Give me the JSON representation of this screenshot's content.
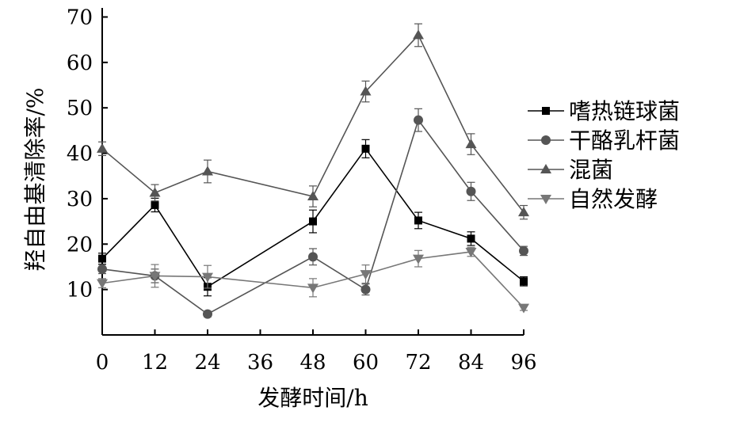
{
  "chart_data": {
    "type": "line",
    "xlabel": "发酵时间/h",
    "ylabel": "羟自由基清除率/%",
    "x": [
      0,
      12,
      24,
      48,
      60,
      72,
      84,
      96
    ],
    "xticks": [
      "0",
      "12",
      "24",
      "36",
      "48",
      "60",
      "72",
      "84",
      "96"
    ],
    "xlim": [
      0,
      96
    ],
    "yticks": [
      "10",
      "20",
      "30",
      "40",
      "50",
      "60",
      "70"
    ],
    "ylim": [
      0,
      72
    ],
    "grid": false,
    "legend_position": "right",
    "series": [
      {
        "name": "嗜热链球菌",
        "marker": "square",
        "color": "#000000",
        "values": [
          16.8,
          28.6,
          10.6,
          25.0,
          41.0,
          25.2,
          21.2,
          11.8
        ],
        "errors": [
          1.2,
          1.5,
          2.0,
          2.5,
          2.0,
          1.8,
          1.5,
          1.0
        ]
      },
      {
        "name": "干酪乳杆菌",
        "marker": "circle",
        "color": "#555555",
        "values": [
          14.5,
          13.0,
          4.6,
          17.2,
          10.0,
          47.3,
          31.6,
          18.5
        ],
        "errors": [
          1.0,
          1.5,
          0.6,
          1.8,
          1.2,
          2.5,
          2.0,
          1.0
        ]
      },
      {
        "name": "混菌",
        "marker": "triangle-up",
        "color": "#555555",
        "values": [
          41.0,
          31.3,
          36.0,
          30.5,
          53.6,
          66.0,
          42.0,
          27.0
        ],
        "errors": [
          1.5,
          1.8,
          2.5,
          2.3,
          2.3,
          2.5,
          2.3,
          1.5
        ]
      },
      {
        "name": "自然发酵",
        "marker": "triangle-down",
        "color": "#777777",
        "values": [
          11.4,
          13.0,
          12.8,
          10.4,
          13.4,
          16.8,
          18.3,
          6.0
        ],
        "errors": [
          1.0,
          2.5,
          2.5,
          2.0,
          2.0,
          1.8,
          1.0,
          0.6
        ]
      }
    ]
  }
}
